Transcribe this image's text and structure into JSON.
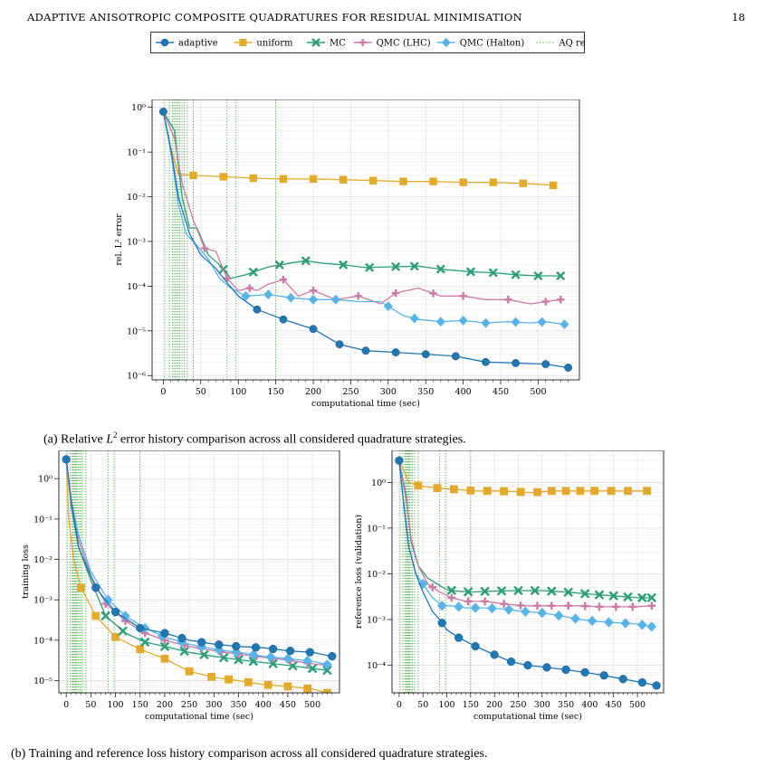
{
  "header": {
    "title": "ADAPTIVE ANISOTROPIC COMPOSITE QUADRATURES FOR RESIDUAL MINIMISATION",
    "page_number": "18"
  },
  "captions": {
    "a": "(a) Relative L² error history comparison across all considered quadrature strategies.",
    "b": "(b) Training and reference loss history comparison across all considered quadrature strategies."
  },
  "legend": {
    "entries": [
      {
        "label": "adaptive",
        "color": "#1f77b4",
        "marker": "circle"
      },
      {
        "label": "uniform",
        "color": "#e5a92a",
        "marker": "square"
      },
      {
        "label": "MC",
        "color": "#2a9d7a",
        "marker": "x"
      },
      {
        "label": "QMC (LHC)",
        "color": "#cc79a7",
        "marker": "plus"
      },
      {
        "label": "QMC (Halton)",
        "color": "#56b4e9",
        "marker": "diamond"
      },
      {
        "label": "AQ refresh",
        "color": "#4daf4a",
        "marker": "dotted-line"
      }
    ]
  },
  "chart_data": [
    {
      "type": "line",
      "xlabel": "computational time (sec)",
      "ylabel": "rel. L² error",
      "yscale": "log",
      "xlim": [
        -15,
        555
      ],
      "ylim": [
        8e-07,
        1.5
      ],
      "xticks": [
        0,
        50,
        100,
        150,
        200,
        250,
        300,
        350,
        400,
        450,
        500
      ],
      "yticks": [
        1e-06,
        1e-05,
        0.0001,
        0.001,
        0.01,
        0.1,
        1
      ],
      "ytick_labels": [
        "10⁻⁶",
        "10⁻⁵",
        "10⁻⁴",
        "10⁻³",
        "10⁻²",
        "10⁻¹",
        "10⁰"
      ],
      "refresh_times": [
        2,
        8,
        12,
        14,
        16,
        18,
        20,
        22,
        25,
        28,
        32,
        40,
        85,
        97,
        150
      ],
      "grid": true,
      "series": [
        {
          "name": "adaptive",
          "x": [
            0,
            10,
            20,
            35,
            50,
            70,
            85,
            100,
            125,
            160,
            200,
            235,
            270,
            310,
            350,
            390,
            430,
            470,
            510,
            540
          ],
          "y": [
            0.8,
            0.12,
            0.01,
            0.0015,
            0.0005,
            0.00025,
            0.00012,
            6e-05,
            3e-05,
            1.8e-05,
            1.1e-05,
            5e-06,
            3.6e-06,
            3.3e-06,
            3e-06,
            2.7e-06,
            2e-06,
            1.9e-06,
            1.8e-06,
            1.5e-06
          ],
          "markers_x": [
            0,
            125,
            160,
            200,
            235,
            270,
            310,
            350,
            390,
            430,
            470,
            510,
            540
          ]
        },
        {
          "name": "uniform",
          "x": [
            0,
            10,
            20,
            40,
            80,
            120,
            160,
            200,
            240,
            280,
            320,
            360,
            400,
            440,
            480,
            520
          ],
          "y": [
            0.8,
            0.12,
            0.032,
            0.03,
            0.028,
            0.026,
            0.025,
            0.025,
            0.024,
            0.023,
            0.022,
            0.022,
            0.021,
            0.021,
            0.02,
            0.018
          ],
          "markers_x": [
            40,
            80,
            120,
            160,
            200,
            240,
            280,
            320,
            360,
            400,
            440,
            480,
            520
          ]
        },
        {
          "name": "MC",
          "x": [
            0,
            15,
            25,
            35,
            45,
            60,
            75,
            90,
            110,
            140,
            170,
            190,
            210,
            240,
            270,
            300,
            340,
            370,
            410,
            440,
            470,
            500,
            530
          ],
          "y": [
            0.8,
            0.3,
            0.01,
            0.002,
            0.002,
            0.0005,
            0.0003,
            0.00015,
            0.00018,
            0.00027,
            0.00033,
            0.00037,
            0.00033,
            0.0003,
            0.00026,
            0.00027,
            0.00028,
            0.00024,
            0.00021,
            0.0002,
            0.00018,
            0.00017,
            0.00017
          ],
          "markers_x": [
            80,
            120,
            155,
            190,
            240,
            275,
            310,
            335,
            370,
            410,
            440,
            470,
            500,
            530
          ]
        },
        {
          "name": "QMC (LHC)",
          "x": [
            0,
            15,
            25,
            40,
            55,
            70,
            85,
            100,
            115,
            125,
            140,
            160,
            180,
            200,
            230,
            260,
            290,
            310,
            340,
            370,
            400,
            430,
            460,
            490,
            510,
            530
          ],
          "y": [
            0.8,
            0.2,
            0.02,
            0.003,
            0.0007,
            0.0006,
            0.00015,
            8e-05,
            9e-05,
            8e-05,
            0.00011,
            0.00014,
            6e-05,
            8e-05,
            5e-05,
            6e-05,
            4e-05,
            7e-05,
            9e-05,
            6e-05,
            6e-05,
            5e-05,
            5e-05,
            4e-05,
            4.5e-05,
            5e-05
          ],
          "markers_x": [
            55,
            85,
            115,
            160,
            200,
            260,
            310,
            360,
            400,
            460,
            510,
            530
          ]
        },
        {
          "name": "QMC (Halton)",
          "x": [
            0,
            10,
            20,
            30,
            45,
            60,
            75,
            90,
            110,
            140,
            170,
            200,
            230,
            260,
            290,
            320,
            340,
            370,
            400,
            430,
            460,
            490,
            510,
            535
          ],
          "y": [
            0.8,
            0.1,
            0.007,
            0.0015,
            0.0008,
            0.0004,
            0.00015,
            9e-05,
            6e-05,
            6.5e-05,
            5.5e-05,
            5e-05,
            5e-05,
            4.5e-05,
            4.5e-05,
            2.2e-05,
            1.8e-05,
            1.6e-05,
            1.7e-05,
            1.5e-05,
            1.6e-05,
            1.5e-05,
            1.6e-05,
            1.4e-05
          ],
          "markers_x": [
            110,
            140,
            170,
            200,
            230,
            300,
            335,
            370,
            400,
            430,
            470,
            505,
            535
          ]
        }
      ]
    },
    {
      "type": "line",
      "xlabel": "computational time (sec)",
      "ylabel": "training loss",
      "yscale": "log",
      "xlim": [
        -15,
        555
      ],
      "ylim": [
        5e-06,
        5
      ],
      "xticks": [
        0,
        50,
        100,
        150,
        200,
        250,
        300,
        350,
        400,
        450,
        500
      ],
      "yticks": [
        1e-05,
        0.0001,
        0.001,
        0.01,
        0.1,
        1
      ],
      "ytick_labels": [
        "10⁻⁵",
        "10⁻⁴",
        "10⁻³",
        "10⁻²",
        "10⁻¹",
        "10⁰"
      ],
      "refresh_times": [
        2,
        8,
        12,
        14,
        16,
        18,
        20,
        22,
        25,
        28,
        32,
        40,
        85,
        97,
        150
      ],
      "grid": true,
      "series": [
        {
          "name": "adaptive",
          "x": [
            0,
            10,
            25,
            60,
            100,
            150,
            200,
            250,
            300,
            350,
            400,
            450,
            500,
            540
          ],
          "y": [
            3,
            0.3,
            0.02,
            0.002,
            0.0005,
            0.0002,
            0.00015,
            0.0001,
            8e-05,
            7e-05,
            6.5e-05,
            5.5e-05,
            5e-05,
            4e-05
          ],
          "markers_x": [
            0,
            60,
            100,
            150,
            200,
            235,
            275,
            310,
            345,
            385,
            420,
            455,
            495,
            540
          ]
        },
        {
          "name": "uniform",
          "x": [
            0,
            5,
            15,
            30,
            60,
            100,
            150,
            200,
            250,
            300,
            350,
            400,
            450,
            500,
            530
          ],
          "y": [
            3,
            0.1,
            0.01,
            0.002,
            0.0004,
            0.00012,
            6e-05,
            3.5e-05,
            1.7e-05,
            1.2e-05,
            1e-05,
            8e-06,
            7.2e-06,
            6.2e-06,
            5e-06
          ],
          "markers_x": [
            30,
            60,
            100,
            150,
            200,
            250,
            295,
            330,
            370,
            410,
            450,
            490,
            530
          ]
        },
        {
          "name": "MC",
          "x": [
            0,
            10,
            25,
            50,
            80,
            120,
            160,
            200,
            250,
            300,
            350,
            400,
            450,
            500,
            530
          ],
          "y": [
            3,
            0.2,
            0.02,
            0.003,
            0.0004,
            0.00015,
            9e-05,
            7e-05,
            5e-05,
            4e-05,
            3.3e-05,
            2.8e-05,
            2.4e-05,
            2e-05,
            1.8e-05
          ],
          "markers_x": [
            80,
            115,
            160,
            200,
            240,
            280,
            320,
            350,
            380,
            420,
            460,
            500,
            530
          ]
        },
        {
          "name": "QMC (LHC)",
          "x": [
            0,
            10,
            25,
            50,
            80,
            120,
            160,
            200,
            250,
            300,
            350,
            400,
            450,
            500,
            530
          ],
          "y": [
            3,
            0.25,
            0.03,
            0.004,
            0.0008,
            0.0003,
            0.00015,
            0.0001,
            7e-05,
            5.5e-05,
            4.5e-05,
            3.8e-05,
            3.2e-05,
            2.6e-05,
            2.4e-05
          ],
          "markers_x": [
            80,
            120,
            160,
            200,
            240,
            275,
            315,
            350,
            385,
            420,
            455,
            490,
            530
          ]
        },
        {
          "name": "QMC (Halton)",
          "x": [
            0,
            10,
            25,
            50,
            85,
            120,
            160,
            200,
            250,
            300,
            350,
            400,
            450,
            500,
            530
          ],
          "y": [
            3,
            0.3,
            0.04,
            0.005,
            0.001,
            0.0004,
            0.0002,
            0.00012,
            8e-05,
            6e-05,
            5e-05,
            4e-05,
            3.5e-05,
            3e-05,
            2.5e-05
          ],
          "markers_x": [
            85,
            120,
            160,
            195,
            235,
            275,
            310,
            345,
            380,
            415,
            450,
            490,
            530
          ]
        }
      ]
    },
    {
      "type": "line",
      "xlabel": "computational time (sec)",
      "ylabel": "reference loss (validation)",
      "yscale": "log",
      "xlim": [
        -15,
        555
      ],
      "ylim": [
        2.5e-05,
        5
      ],
      "xticks": [
        0,
        50,
        100,
        150,
        200,
        250,
        300,
        350,
        400,
        450,
        500
      ],
      "yticks": [
        0.0001,
        0.001,
        0.01,
        0.1,
        1
      ],
      "ytick_labels": [
        "10⁻⁴",
        "10⁻³",
        "10⁻²",
        "10⁻¹",
        "10⁰"
      ],
      "refresh_times": [
        2,
        8,
        12,
        14,
        16,
        18,
        20,
        22,
        25,
        28,
        32,
        40,
        85,
        97,
        150
      ],
      "grid": true,
      "series": [
        {
          "name": "adaptive",
          "x": [
            0,
            10,
            20,
            35,
            50,
            70,
            85,
            100,
            125,
            160,
            200,
            235,
            270,
            310,
            350,
            390,
            430,
            470,
            510,
            540
          ],
          "y": [
            3,
            0.3,
            0.04,
            0.01,
            0.004,
            0.0015,
            0.001,
            0.0006,
            0.0004,
            0.00026,
            0.00017,
            0.00012,
            0.0001,
            9e-05,
            8e-05,
            7e-05,
            6e-05,
            5e-05,
            4.2e-05,
            3.6e-05
          ],
          "markers_x": [
            0,
            90,
            125,
            160,
            200,
            235,
            270,
            310,
            350,
            390,
            430,
            470,
            510,
            540
          ]
        },
        {
          "name": "uniform",
          "x": [
            0,
            8,
            20,
            40,
            80,
            120,
            160,
            200,
            240,
            280,
            320,
            360,
            400,
            440,
            480,
            520
          ],
          "y": [
            3,
            2,
            1,
            0.85,
            0.75,
            0.7,
            0.65,
            0.65,
            0.63,
            0.6,
            0.65,
            0.65,
            0.65,
            0.65,
            0.65,
            0.65
          ],
          "markers_x": [
            40,
            80,
            115,
            150,
            185,
            220,
            255,
            290,
            320,
            350,
            380,
            410,
            445,
            480,
            520
          ]
        },
        {
          "name": "MC",
          "x": [
            0,
            15,
            25,
            40,
            60,
            80,
            100,
            120,
            150,
            200,
            250,
            300,
            350,
            400,
            450,
            500,
            530
          ],
          "y": [
            3,
            0.5,
            0.05,
            0.015,
            0.008,
            0.006,
            0.0045,
            0.0042,
            0.004,
            0.0042,
            0.0043,
            0.0043,
            0.004,
            0.0036,
            0.0033,
            0.003,
            0.003
          ],
          "markers_x": [
            110,
            145,
            180,
            215,
            250,
            285,
            320,
            355,
            390,
            420,
            450,
            480,
            510,
            530
          ]
        },
        {
          "name": "QMC (LHC)",
          "x": [
            0,
            15,
            25,
            40,
            60,
            85,
            110,
            140,
            180,
            220,
            260,
            300,
            340,
            380,
            420,
            460,
            500,
            530
          ],
          "y": [
            3,
            0.4,
            0.06,
            0.015,
            0.006,
            0.004,
            0.003,
            0.0025,
            0.0025,
            0.0022,
            0.002,
            0.002,
            0.002,
            0.002,
            0.0019,
            0.0019,
            0.0019,
            0.002
          ],
          "markers_x": [
            70,
            110,
            145,
            180,
            220,
            255,
            290,
            320,
            355,
            390,
            420,
            455,
            490,
            530
          ]
        },
        {
          "name": "QMC (Halton)",
          "x": [
            0,
            10,
            20,
            35,
            50,
            70,
            90,
            110,
            140,
            180,
            220,
            260,
            300,
            340,
            380,
            420,
            460,
            500,
            530
          ],
          "y": [
            3,
            0.3,
            0.04,
            0.01,
            0.006,
            0.003,
            0.002,
            0.002,
            0.0018,
            0.0018,
            0.0017,
            0.0015,
            0.0014,
            0.0012,
            0.001,
            0.0009,
            0.00085,
            0.0008,
            0.0007
          ],
          "markers_x": [
            50,
            90,
            125,
            160,
            195,
            230,
            265,
            300,
            335,
            370,
            405,
            440,
            475,
            510,
            530
          ]
        }
      ]
    }
  ]
}
